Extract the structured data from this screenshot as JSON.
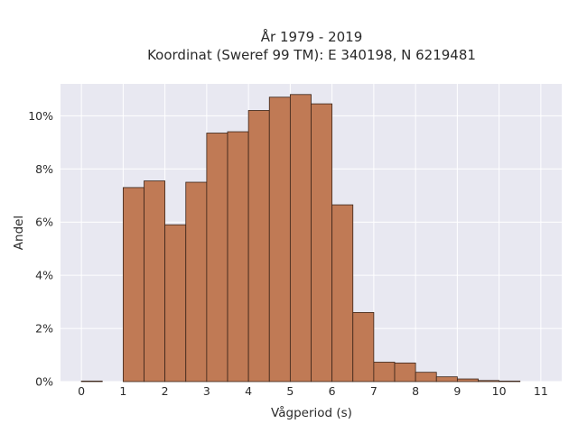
{
  "chart_data": {
    "type": "bar",
    "title_lines": [
      "År 1979 - 2019",
      "Koordinat (Sweref 99 TM): E 340198, N 6219481"
    ],
    "xlabel": "Vågperiod (s)",
    "ylabel": "Andel",
    "x_ticks": [
      "0",
      "1",
      "2",
      "3",
      "4",
      "5",
      "6",
      "7",
      "8",
      "9",
      "10",
      "11"
    ],
    "y_ticks": [
      "0%",
      "2%",
      "4%",
      "6%",
      "8%",
      "10%"
    ],
    "y_tick_values": [
      0,
      2,
      4,
      6,
      8,
      10
    ],
    "xlim": [
      -0.5,
      11.5
    ],
    "ylim": [
      0,
      11.2
    ],
    "grid": true,
    "bar_color": "#c07a55",
    "bar_edge_color": "#3a2418",
    "plot_bg": "#e8e8f1",
    "bins": [
      {
        "x0": 0.0,
        "x1": 0.5,
        "value": 0.02
      },
      {
        "x0": 0.5,
        "x1": 1.0,
        "value": 0.0
      },
      {
        "x0": 1.0,
        "x1": 1.5,
        "value": 7.3
      },
      {
        "x0": 1.5,
        "x1": 2.0,
        "value": 7.55
      },
      {
        "x0": 2.0,
        "x1": 2.5,
        "value": 5.9
      },
      {
        "x0": 2.5,
        "x1": 3.0,
        "value": 7.5
      },
      {
        "x0": 3.0,
        "x1": 3.5,
        "value": 9.35
      },
      {
        "x0": 3.5,
        "x1": 4.0,
        "value": 9.4
      },
      {
        "x0": 4.0,
        "x1": 4.5,
        "value": 10.2
      },
      {
        "x0": 4.5,
        "x1": 5.0,
        "value": 10.7
      },
      {
        "x0": 5.0,
        "x1": 5.5,
        "value": 10.8
      },
      {
        "x0": 5.5,
        "x1": 6.0,
        "value": 10.45
      },
      {
        "x0": 6.0,
        "x1": 6.5,
        "value": 6.65
      },
      {
        "x0": 6.5,
        "x1": 7.0,
        "value": 2.6
      },
      {
        "x0": 7.0,
        "x1": 7.5,
        "value": 0.73
      },
      {
        "x0": 7.5,
        "x1": 8.0,
        "value": 0.7
      },
      {
        "x0": 8.0,
        "x1": 8.5,
        "value": 0.35
      },
      {
        "x0": 8.5,
        "x1": 9.0,
        "value": 0.18
      },
      {
        "x0": 9.0,
        "x1": 9.5,
        "value": 0.1
      },
      {
        "x0": 9.5,
        "x1": 10.0,
        "value": 0.04
      },
      {
        "x0": 10.0,
        "x1": 10.5,
        "value": 0.02
      },
      {
        "x0": 10.5,
        "x1": 11.0,
        "value": 0.0
      }
    ]
  }
}
